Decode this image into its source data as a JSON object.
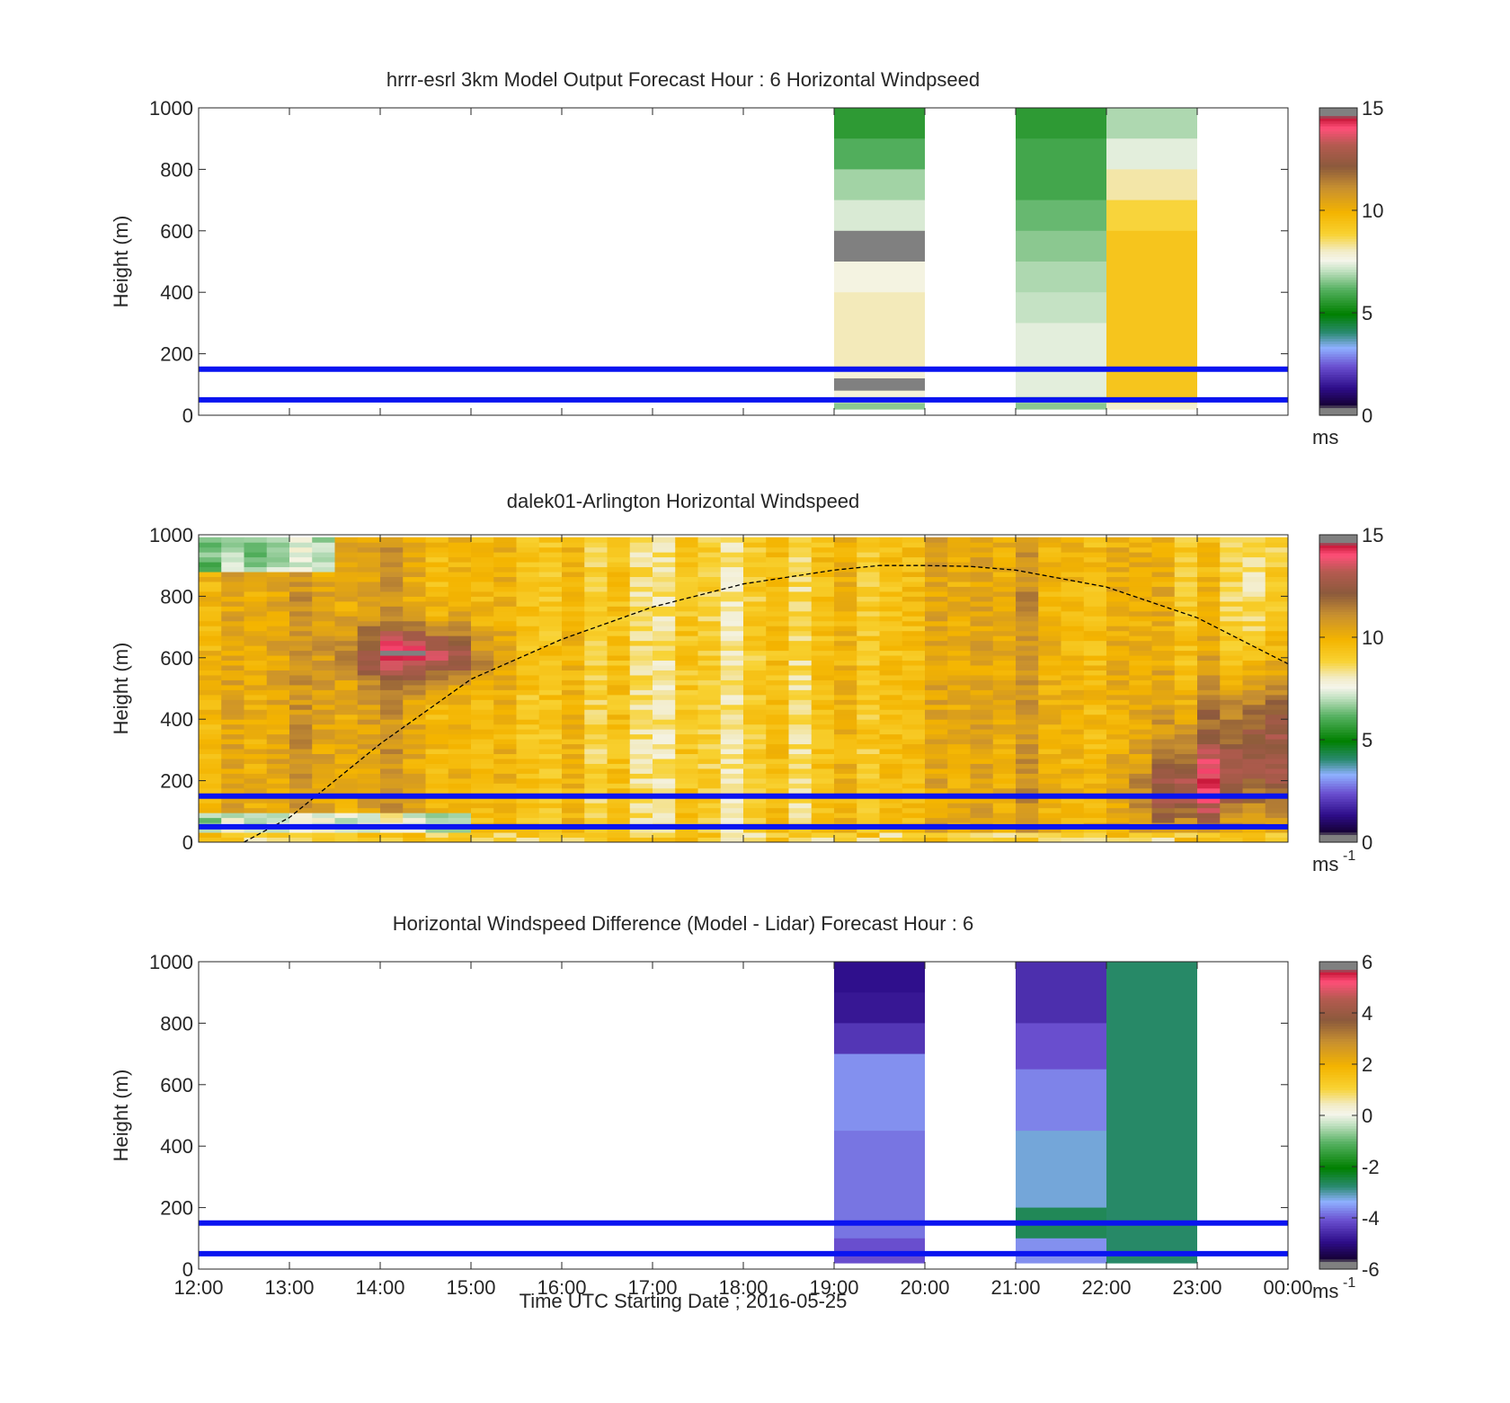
{
  "chart_data": [
    {
      "type": "heatmap",
      "title": "hrrr-esrl 3km Model Output   Forecast Hour : 6 Horizontal Windpseed",
      "ylabel": "Height (m)",
      "xlabel": "",
      "x_ticks": [
        "12:00",
        "13:00",
        "14:00",
        "15:00",
        "16:00",
        "17:00",
        "18:00",
        "19:00",
        "20:00",
        "21:00",
        "22:00",
        "23:00",
        "00:00"
      ],
      "ylim": [
        0,
        1000
      ],
      "y_ticks": [
        "0",
        "200",
        "400",
        "600",
        "800",
        "1000"
      ],
      "colorbar": {
        "range": [
          0,
          15
        ],
        "ticks": [
          "0",
          "5",
          "10",
          "15"
        ],
        "unit": "ms"
      },
      "reference_lines_m": [
        50,
        150
      ],
      "columns": [
        {
          "hour_start": 19,
          "hour_end": 20,
          "segments": [
            {
              "from": 900,
              "to": 1000,
              "value": 5.6
            },
            {
              "from": 800,
              "to": 900,
              "value": 6.1
            },
            {
              "from": 700,
              "to": 800,
              "value": 6.8
            },
            {
              "from": 600,
              "to": 700,
              "value": 7.3
            },
            {
              "from": 500,
              "to": 600,
              "value": 0.1
            },
            {
              "from": 400,
              "to": 500,
              "value": 7.7
            },
            {
              "from": 150,
              "to": 400,
              "value": 8.1
            },
            {
              "from": 120,
              "to": 150,
              "value": 7.8
            },
            {
              "from": 80,
              "to": 120,
              "value": 0.1
            },
            {
              "from": 40,
              "to": 80,
              "value": 7.8
            },
            {
              "from": 20,
              "to": 40,
              "value": 6.6
            }
          ]
        },
        {
          "hour_start": 21,
          "hour_end": 22,
          "segments": [
            {
              "from": 900,
              "to": 1000,
              "value": 5.6
            },
            {
              "from": 700,
              "to": 900,
              "value": 5.9
            },
            {
              "from": 600,
              "to": 700,
              "value": 6.3
            },
            {
              "from": 500,
              "to": 600,
              "value": 6.6
            },
            {
              "from": 400,
              "to": 500,
              "value": 6.9
            },
            {
              "from": 300,
              "to": 400,
              "value": 7.1
            },
            {
              "from": 60,
              "to": 300,
              "value": 7.4
            },
            {
              "from": 40,
              "to": 60,
              "value": 7.0
            },
            {
              "from": 20,
              "to": 40,
              "value": 6.6
            }
          ]
        },
        {
          "hour_start": 22,
          "hour_end": 23,
          "segments": [
            {
              "from": 900,
              "to": 1000,
              "value": 6.9
            },
            {
              "from": 800,
              "to": 900,
              "value": 7.4
            },
            {
              "from": 700,
              "to": 800,
              "value": 8.2
            },
            {
              "from": 600,
              "to": 700,
              "value": 8.8
            },
            {
              "from": 40,
              "to": 600,
              "value": 9.3
            },
            {
              "from": 20,
              "to": 40,
              "value": 7.9
            }
          ]
        }
      ]
    },
    {
      "type": "heatmap",
      "title": "dalek01-Arlington  Horizontal Windspeed",
      "ylabel": "Height (m)",
      "xlabel": "",
      "x_ticks": [
        "12:00",
        "13:00",
        "14:00",
        "15:00",
        "16:00",
        "17:00",
        "18:00",
        "19:00",
        "20:00",
        "21:00",
        "22:00",
        "23:00",
        "00:00"
      ],
      "ylim": [
        0,
        1000
      ],
      "y_ticks": [
        "0",
        "200",
        "400",
        "600",
        "800",
        "1000"
      ],
      "colorbar": {
        "range": [
          0,
          15
        ],
        "ticks": [
          "0",
          "5",
          "10",
          "15"
        ],
        "unit": "ms",
        "unit_superscript": "-1"
      },
      "reference_lines_m": [
        50,
        150
      ],
      "boundary_layer_curve": {
        "hours": [
          12.5,
          13.0,
          14.0,
          15.0,
          16.0,
          17.0,
          18.0,
          19.0,
          19.5,
          20.0,
          20.5,
          21.0,
          22.0,
          23.0,
          24.0
        ],
        "heights_m": [
          0,
          80,
          320,
          530,
          660,
          765,
          840,
          885,
          900,
          900,
          897,
          885,
          830,
          730,
          580
        ]
      },
      "field_description": "Profile every 15 min from 12:00 to 23:45, with a few missing profiles"
    },
    {
      "type": "heatmap",
      "title": "Horizontal Windspeed Difference (Model - Lidar) Forecast Hour : 6",
      "ylabel": "Height (m)",
      "xlabel": "Time UTC  Starting Date ; 2016-05-25",
      "x_ticks": [
        "12:00",
        "13:00",
        "14:00",
        "15:00",
        "16:00",
        "17:00",
        "18:00",
        "19:00",
        "20:00",
        "21:00",
        "22:00",
        "23:00",
        "00:00"
      ],
      "ylim": [
        0,
        1000
      ],
      "y_ticks": [
        "0",
        "200",
        "400",
        "600",
        "800",
        "1000"
      ],
      "colorbar": {
        "range": [
          -6,
          6
        ],
        "ticks": [
          "-6",
          "-4",
          "-2",
          "0",
          "2",
          "4",
          "6"
        ],
        "unit": "ms",
        "unit_superscript": "-1"
      },
      "reference_lines_m": [
        50,
        150
      ],
      "columns": [
        {
          "hour_start": 19,
          "hour_end": 20,
          "segments": [
            {
              "from": 900,
              "to": 1000,
              "value": -4.9
            },
            {
              "from": 800,
              "to": 900,
              "value": -4.8
            },
            {
              "from": 700,
              "to": 800,
              "value": -4.4
            },
            {
              "from": 450,
              "to": 700,
              "value": -3.6
            },
            {
              "from": 100,
              "to": 450,
              "value": -3.8
            },
            {
              "from": 20,
              "to": 100,
              "value": -4.1
            }
          ]
        },
        {
          "hour_start": 21,
          "hour_end": 22,
          "segments": [
            {
              "from": 800,
              "to": 1000,
              "value": -4.5
            },
            {
              "from": 650,
              "to": 800,
              "value": -4.1
            },
            {
              "from": 450,
              "to": 650,
              "value": -3.7
            },
            {
              "from": 200,
              "to": 450,
              "value": -3.2
            },
            {
              "from": 100,
              "to": 200,
              "value": -2.6
            },
            {
              "from": 20,
              "to": 100,
              "value": -3.6
            }
          ]
        },
        {
          "hour_start": 22,
          "hour_end": 23,
          "segments": [
            {
              "from": 20,
              "to": 1000,
              "value": -2.7
            }
          ]
        }
      ]
    }
  ],
  "colors": {
    "reference_line": "#0a14f0",
    "curve": "#000000",
    "missing": "#ffffff",
    "axis": "#262626",
    "colorbar_end": "#808080"
  }
}
